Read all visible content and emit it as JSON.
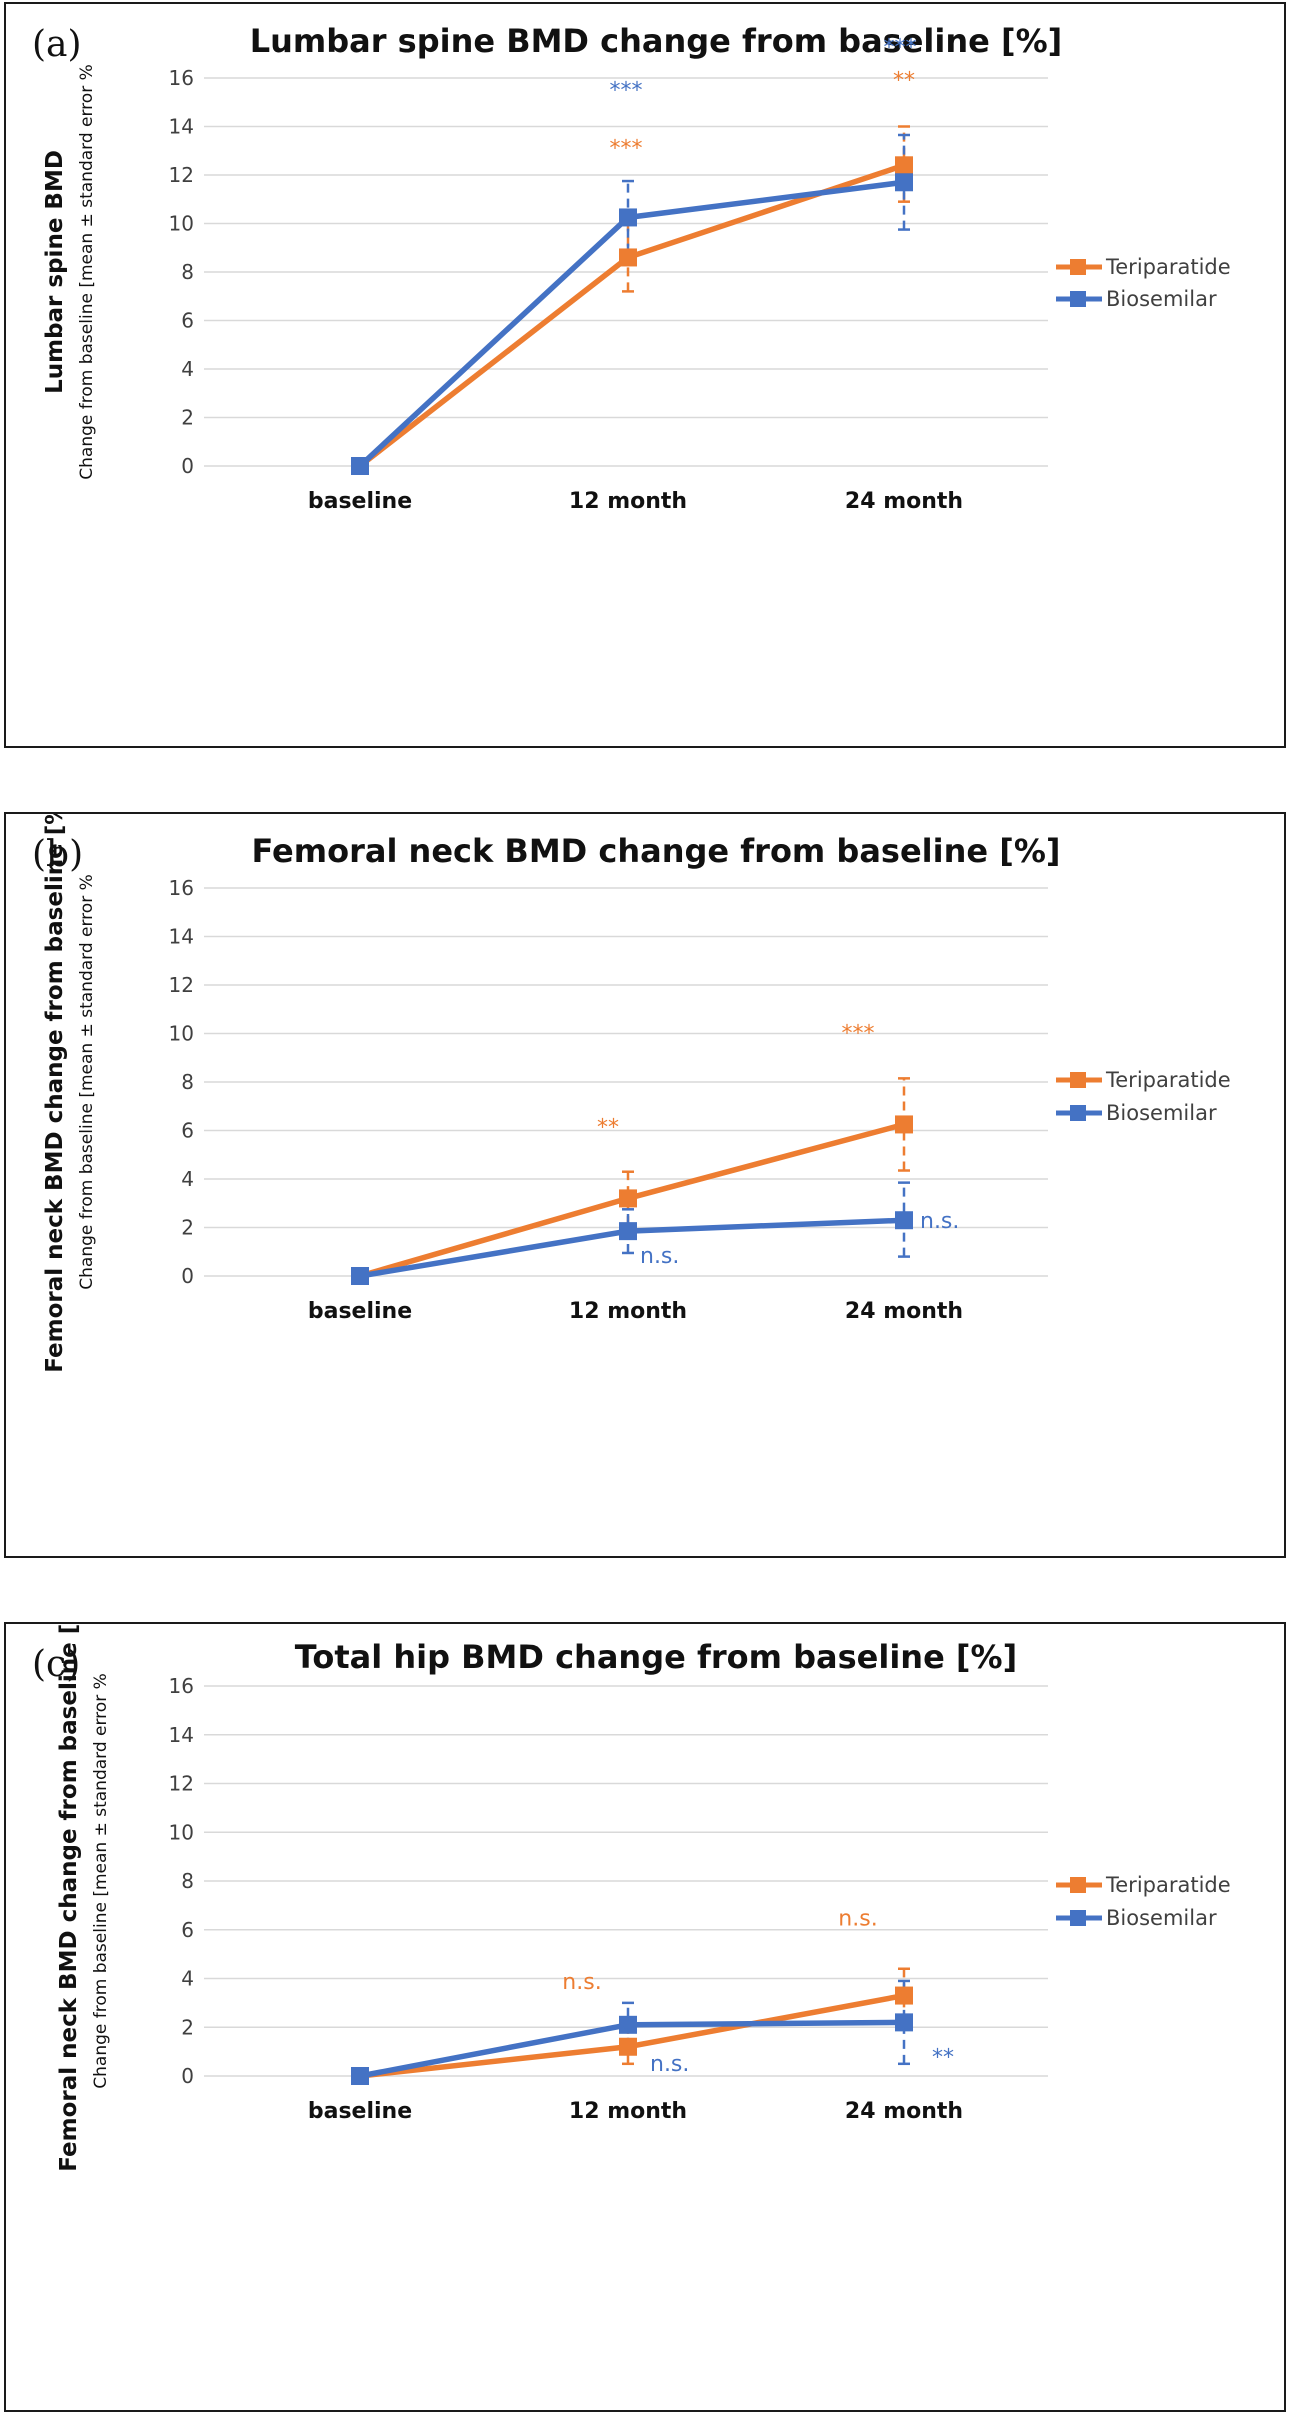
{
  "chart_data": [
    {
      "panel_label": "(a)",
      "type": "line",
      "title": "Lumbar spine BMD change from baseline [%]",
      "ylabel": "Lumbar spine  BMD",
      "ylabel_sub": "Change from baseline [mean ± standard error %",
      "xlabel": "",
      "categories": [
        "baseline",
        "12 month",
        "24 month"
      ],
      "ylim": [
        0,
        16
      ],
      "yticks": [
        "0",
        "2",
        "4",
        "6",
        "8",
        "10",
        "12",
        "14",
        "16"
      ],
      "grid": true,
      "legend_position": "right",
      "series": [
        {
          "name": "Teriparatide",
          "color": "#ed7d31",
          "values": [
            0,
            8.6,
            12.4
          ],
          "err_low": [
            null,
            7.2,
            10.9
          ],
          "err_high": [
            null,
            10.0,
            14.0
          ],
          "sig": [
            "",
            "***",
            "**"
          ]
        },
        {
          "name": "Biosemilar",
          "color": "#4472c4",
          "values": [
            0,
            10.25,
            11.7
          ],
          "err_low": [
            null,
            8.8,
            9.75
          ],
          "err_high": [
            null,
            11.75,
            13.65
          ],
          "sig": [
            "",
            "***",
            "***"
          ]
        }
      ]
    },
    {
      "panel_label": "(b)",
      "type": "line",
      "title": "Femoral neck BMD change from baseline [%]",
      "ylabel": "Femoral neck BMD change from baseline [%]",
      "ylabel_sub": "Change from baseline [mean ± standard error %",
      "xlabel": "",
      "categories": [
        "baseline",
        "12 month",
        "24 month"
      ],
      "ylim": [
        0,
        16
      ],
      "yticks": [
        "0",
        "2",
        "4",
        "6",
        "8",
        "10",
        "12",
        "14",
        "16"
      ],
      "grid": true,
      "legend_position": "right",
      "series": [
        {
          "name": "Teriparatide",
          "color": "#ed7d31",
          "values": [
            0,
            3.2,
            6.25
          ],
          "err_low": [
            null,
            2.1,
            4.35
          ],
          "err_high": [
            null,
            4.3,
            8.15
          ],
          "sig": [
            "",
            "**",
            "***"
          ]
        },
        {
          "name": "Biosemilar",
          "color": "#4472c4",
          "values": [
            0,
            1.85,
            2.3
          ],
          "err_low": [
            null,
            0.95,
            0.8
          ],
          "err_high": [
            null,
            2.75,
            3.85
          ],
          "sig": [
            "",
            "n.s.",
            "n.s."
          ]
        }
      ]
    },
    {
      "panel_label": "(c)",
      "type": "line",
      "title": "Total hip BMD change from baseline [%]",
      "ylabel": "Femoral neck BMD change from baseline [%]",
      "ylabel_sub": "Change from baseline [mean ± standard error %",
      "xlabel": "",
      "categories": [
        "baseline",
        "12 month",
        "24 month"
      ],
      "ylim": [
        0,
        16
      ],
      "yticks": [
        "0",
        "2",
        "4",
        "6",
        "8",
        "10",
        "12",
        "14",
        "16"
      ],
      "grid": true,
      "legend_position": "right",
      "series": [
        {
          "name": "Teriparatide",
          "color": "#ed7d31",
          "values": [
            0,
            1.2,
            3.3
          ],
          "err_low": [
            null,
            0.5,
            2.2
          ],
          "err_high": [
            null,
            1.9,
            4.4
          ],
          "sig": [
            "",
            "n.s.",
            "n.s."
          ]
        },
        {
          "name": "Biosemilar",
          "color": "#4472c4",
          "values": [
            0,
            2.1,
            2.2
          ],
          "err_low": [
            null,
            1.2,
            0.5
          ],
          "err_high": [
            null,
            3.0,
            3.9
          ],
          "sig": [
            "",
            "n.s.",
            "**"
          ]
        }
      ]
    }
  ]
}
